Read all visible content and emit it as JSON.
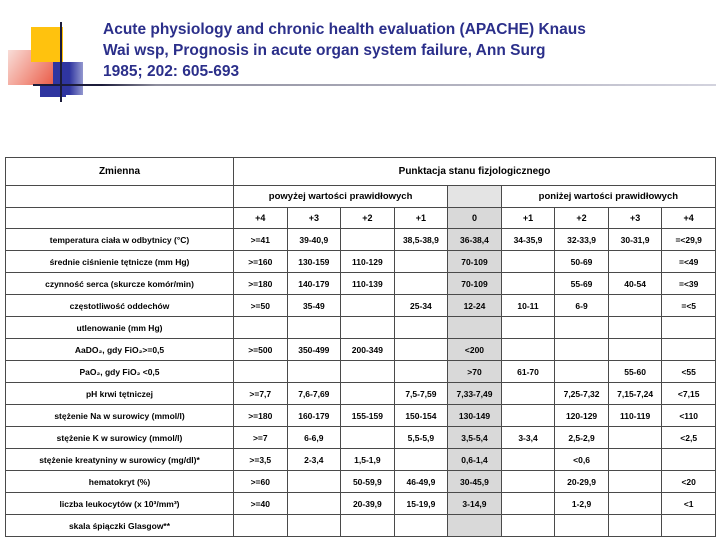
{
  "slide": {
    "title_lines": [
      "Acute physiology and chronic health evaluation (APACHE) Knaus",
      "Wai wsp, Prognosis in acute organ system failure, Ann Surg",
      "1985; 202: 605-693"
    ]
  },
  "colors": {
    "title_navy": "#2b2f8a",
    "zero_column_gray": "#d9d9d9",
    "logo_yellow": "#ffc20e",
    "logo_blue": "#2f35a0",
    "logo_pink": "#ea5c49"
  },
  "table": {
    "header": {
      "col1": "Zmienna",
      "main": "Punktacja stanu fizjologicznego",
      "above": "powyżej wartości prawidłowych",
      "below": "poniżej wartości prawidłowych",
      "scores": [
        "+4",
        "+3",
        "+2",
        "+1",
        "0",
        "+1",
        "+2",
        "+3",
        "+4"
      ]
    },
    "rows": [
      {
        "label": "temperatura ciała w odbytnicy (°C)",
        "cells": [
          ">=41",
          "39-40,9",
          "",
          "38,5-38,9",
          "36-38,4",
          "34-35,9",
          "32-33,9",
          "30-31,9",
          "=<29,9"
        ]
      },
      {
        "label": "średnie ciśnienie tętnicze (mm Hg)",
        "cells": [
          ">=160",
          "130-159",
          "110-129",
          "",
          "70-109",
          "",
          "50-69",
          "",
          "=<49"
        ]
      },
      {
        "label": "czynność serca (skurcze komór/min)",
        "cells": [
          ">=180",
          "140-179",
          "110-139",
          "",
          "70-109",
          "",
          "55-69",
          "40-54",
          "=<39"
        ]
      },
      {
        "label": "częstotliwość oddechów",
        "cells": [
          ">=50",
          "35-49",
          "",
          "25-34",
          "12-24",
          "10-11",
          "6-9",
          "",
          "=<5"
        ]
      },
      {
        "label": "utlenowanie (mm Hg)",
        "cells": [
          "",
          "",
          "",
          "",
          "",
          "",
          "",
          "",
          ""
        ]
      },
      {
        "label": "AaDO₂, gdy FiO₂>=0,5",
        "cells": [
          ">=500",
          "350-499",
          "200-349",
          "",
          "<200",
          "",
          "",
          "",
          ""
        ]
      },
      {
        "label": "PaO₂, gdy FiO₂ <0,5",
        "cells": [
          "",
          "",
          "",
          "",
          ">70",
          "61-70",
          "",
          "55-60",
          "<55"
        ]
      },
      {
        "label": "pH krwi tętniczej",
        "cells": [
          ">=7,7",
          "7,6-7,69",
          "",
          "7,5-7,59",
          "7,33-7,49",
          "",
          "7,25-7,32",
          "7,15-7,24",
          "<7,15"
        ]
      },
      {
        "label": "stężenie Na w surowicy (mmol/l)",
        "cells": [
          ">=180",
          "160-179",
          "155-159",
          "150-154",
          "130-149",
          "",
          "120-129",
          "110-119",
          "<110"
        ]
      },
      {
        "label": "stężenie K w surowicy (mmol/l)",
        "cells": [
          ">=7",
          "6-6,9",
          "",
          "5,5-5,9",
          "3,5-5,4",
          "3-3,4",
          "2,5-2,9",
          "",
          "<2,5"
        ]
      },
      {
        "label": "stężenie kreatyniny w surowicy (mg/dl)*",
        "cells": [
          ">=3,5",
          "2-3,4",
          "1,5-1,9",
          "",
          "0,6-1,4",
          "",
          "<0,6",
          "",
          ""
        ]
      },
      {
        "label": "hematokryt (%)",
        "cells": [
          ">=60",
          "",
          "50-59,9",
          "46-49,9",
          "30-45,9",
          "",
          "20-29,9",
          "",
          "<20"
        ]
      },
      {
        "label": "liczba leukocytów (x 10³/mm³)",
        "cells": [
          ">=40",
          "",
          "20-39,9",
          "15-19,9",
          "3-14,9",
          "",
          "1-2,9",
          "",
          "<1"
        ]
      },
      {
        "label": "skala śpiączki Glasgow**",
        "cells": [
          "",
          "",
          "",
          "",
          "",
          "",
          "",
          "",
          ""
        ]
      }
    ]
  }
}
